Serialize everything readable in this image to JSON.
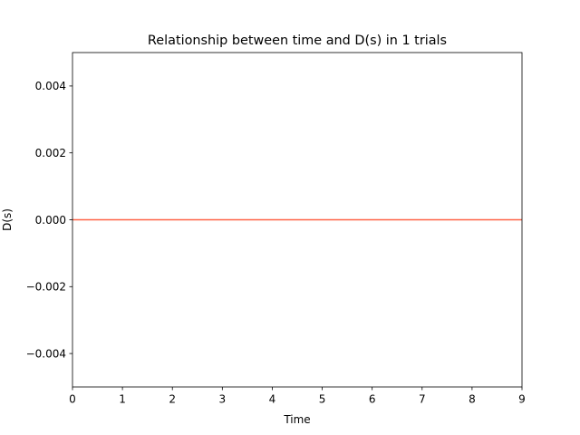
{
  "chart_data": {
    "type": "line",
    "title": "Relationship between time and D(s) in 1 trials",
    "xlabel": "Time",
    "ylabel": "D(s)",
    "xlim": [
      0,
      9
    ],
    "ylim": [
      -0.005,
      0.005
    ],
    "xticks": [
      0,
      1,
      2,
      3,
      4,
      5,
      6,
      7,
      8,
      9
    ],
    "xtick_labels": [
      "0",
      "1",
      "2",
      "3",
      "4",
      "5",
      "6",
      "7",
      "8",
      "9"
    ],
    "yticks": [
      -0.004,
      -0.002,
      0.0,
      0.002,
      0.004
    ],
    "ytick_labels": [
      "−0.004",
      "−0.002",
      "0.000",
      "0.002",
      "0.004"
    ],
    "grid": false,
    "series": [
      {
        "color": "#ff6347",
        "x": [
          0,
          1,
          2,
          3,
          4,
          5,
          6,
          7,
          8,
          9
        ],
        "y": [
          0,
          0,
          0,
          0,
          0,
          0,
          0,
          0,
          0,
          0
        ]
      }
    ]
  }
}
